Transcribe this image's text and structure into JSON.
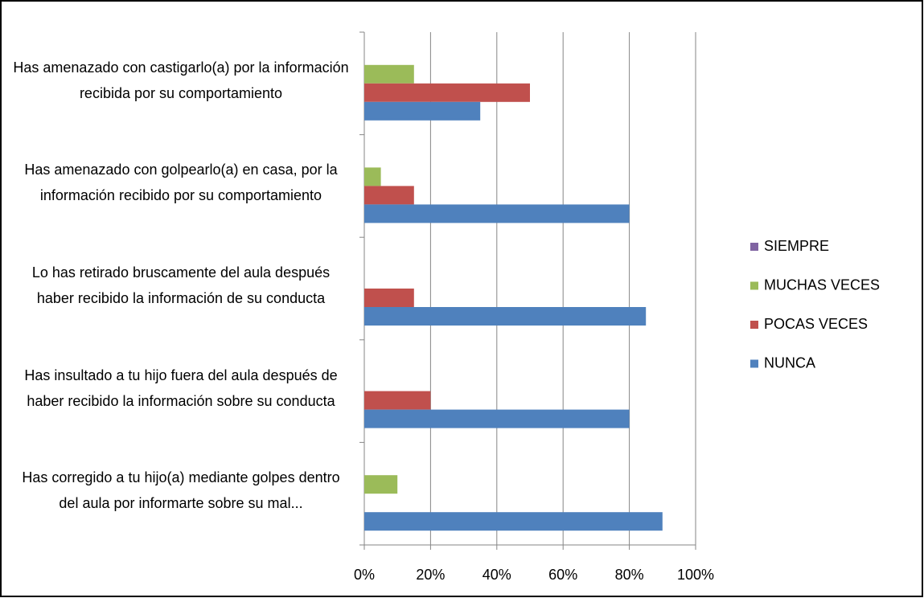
{
  "chart_data": {
    "type": "hbar",
    "categories": [
      "Has amenazado con castigarlo(a) por la información recibida por su comportamiento",
      "Has amenazado con golpearlo(a) en casa, por la información recibido por su comportamiento",
      "Lo has retirado bruscamente del aula después haber recibido la información de su conducta",
      "Has insultado a tu hijo fuera del aula después de haber recibido la información sobre su conducta",
      "Has corregido a tu hijo(a) mediante golpes dentro del aula por informarte sobre su mal..."
    ],
    "series": [
      {
        "name": "SIEMPRE",
        "color": "#8064a2",
        "values": [
          0,
          0,
          0,
          0,
          0
        ]
      },
      {
        "name": "MUCHAS VECES",
        "color": "#9bbb59",
        "values": [
          15,
          5,
          0,
          0,
          10
        ]
      },
      {
        "name": "POCAS VECES",
        "color": "#c0504d",
        "values": [
          50,
          15,
          15,
          20,
          0
        ]
      },
      {
        "name": "NUNCA",
        "color": "#4f81bd",
        "values": [
          35,
          80,
          85,
          80,
          90
        ]
      }
    ],
    "xlim": [
      0,
      100
    ],
    "xticks": [
      {
        "value": 0,
        "label": "0%"
      },
      {
        "value": 20,
        "label": "20%"
      },
      {
        "value": 40,
        "label": "40%"
      },
      {
        "value": 60,
        "label": "60%"
      },
      {
        "value": 80,
        "label": "80%"
      },
      {
        "value": 100,
        "label": "100%"
      }
    ],
    "grid": true,
    "legend": "right"
  }
}
